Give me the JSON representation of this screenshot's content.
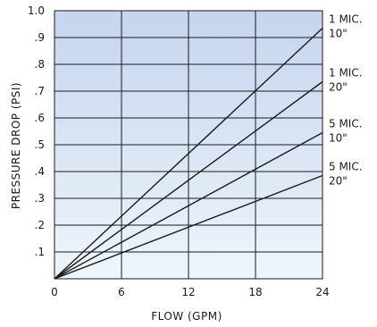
{
  "chart_data": {
    "type": "line",
    "xlabel": "FLOW (GPM)",
    "ylabel": "PRESSURE DROP (PSI)",
    "xlim": [
      0,
      24
    ],
    "ylim": [
      0,
      1.0
    ],
    "x_ticks": [
      {
        "value": 0,
        "label": "0"
      },
      {
        "value": 6,
        "label": "6"
      },
      {
        "value": 12,
        "label": "12"
      },
      {
        "value": 18,
        "label": "18"
      },
      {
        "value": 24,
        "label": "24"
      }
    ],
    "y_ticks": [
      {
        "value": 0.1,
        "label": ".1"
      },
      {
        "value": 0.2,
        "label": ".2"
      },
      {
        "value": 0.3,
        "label": ".3"
      },
      {
        "value": 0.4,
        "label": ".4"
      },
      {
        "value": 0.5,
        "label": ".5"
      },
      {
        "value": 0.6,
        "label": ".6"
      },
      {
        "value": 0.7,
        "label": ".7"
      },
      {
        "value": 0.8,
        "label": ".8"
      },
      {
        "value": 0.9,
        "label": ".9"
      },
      {
        "value": 1.0,
        "label": "1.0"
      }
    ],
    "grid": true,
    "background_gradient": [
      "#c5d5ee",
      "#eef5fc"
    ],
    "line_color": "#1a1a1a",
    "series": [
      {
        "label_line1": "1 MIC.",
        "label_line2": "10\"",
        "x": [
          0,
          24
        ],
        "values": [
          0,
          0.935
        ]
      },
      {
        "label_line1": "1 MIC.",
        "label_line2": "20\"",
        "x": [
          0,
          24
        ],
        "values": [
          0,
          0.735
        ]
      },
      {
        "label_line1": "5 MIC.",
        "label_line2": "10\"",
        "x": [
          0,
          24
        ],
        "values": [
          0,
          0.545
        ]
      },
      {
        "label_line1": "5 MIC.",
        "label_line2": "20\"",
        "x": [
          0,
          24
        ],
        "values": [
          0,
          0.385
        ]
      }
    ]
  }
}
